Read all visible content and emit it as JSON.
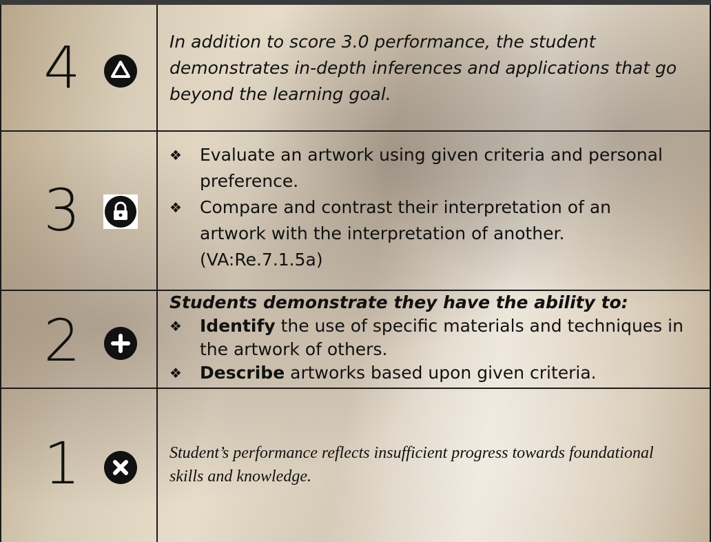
{
  "rows": [
    {
      "score": "4",
      "description": "In addition to score 3.0 performance, the student demonstrates in-depth inferences and applications that go beyond the learning goal."
    },
    {
      "score": "3",
      "bullets": [
        "Evaluate an artwork using given criteria and personal preference.",
        "Compare and contrast their interpretation of an artwork with the interpretation of another. (VA:Re.7.1.5a)"
      ]
    },
    {
      "score": "2",
      "heading": "Students demonstrate they have the ability to:",
      "bullets": [
        {
          "bold": "Identify",
          "text": "the use of specific materials and techniques in the artwork of others."
        },
        {
          "bold": "Describe",
          "text": "artworks based upon given criteria."
        }
      ]
    },
    {
      "score": "1",
      "description": "Student’s performance reflects insufficient progress towards foundational skills and knowledge."
    }
  ]
}
